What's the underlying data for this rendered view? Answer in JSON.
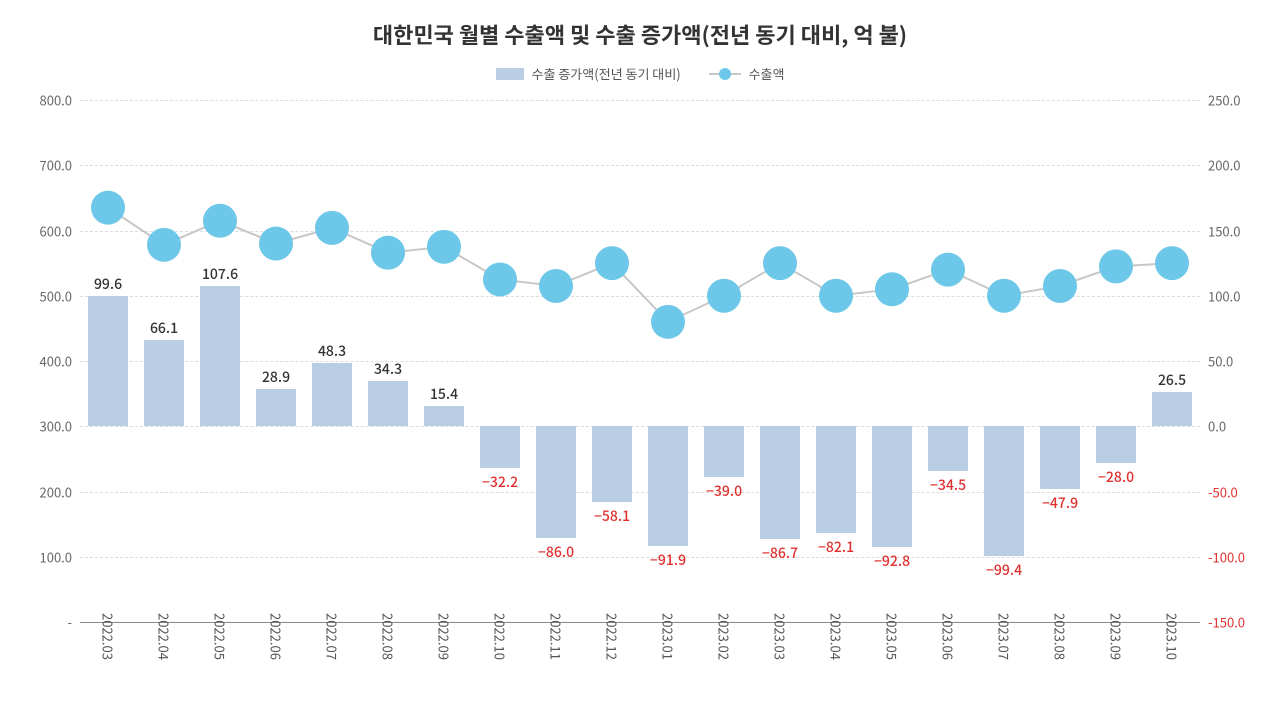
{
  "chart": {
    "title": "대한민국 월별 수출액 및 수출 증가액(전년 동기 대비, 억 불)",
    "title_fontsize": 22,
    "legend": {
      "bar_label": "수출 증가액(전년 동기 대비)",
      "line_label": "수출액",
      "bar_color": "#b9cee4",
      "line_color": "#6cc7e8",
      "line_stroke": "#c7c7c7"
    },
    "categories": [
      "2022.03",
      "2022.04",
      "2022.05",
      "2022.06",
      "2022.07",
      "2022.08",
      "2022.09",
      "2022.10",
      "2022.11",
      "2022.12",
      "2023.01",
      "2023.02",
      "2023.03",
      "2023.04",
      "2023.05",
      "2023.06",
      "2023.07",
      "2023.08",
      "2023.09",
      "2023.10"
    ],
    "bars": {
      "values": [
        99.6,
        66.1,
        107.6,
        28.9,
        48.3,
        34.3,
        15.4,
        -32.2,
        -86.0,
        -58.1,
        -91.9,
        -39.0,
        -86.7,
        -82.1,
        -92.8,
        -34.5,
        -99.4,
        -47.9,
        -28.0,
        26.5
      ],
      "color": "#b9cee4",
      "label_color_pos": "#333333",
      "label_color_neg": "#e03030",
      "label_fontsize": 14
    },
    "line": {
      "values": [
        635,
        578,
        615,
        580,
        604,
        566,
        575,
        525,
        515,
        550,
        460,
        500,
        550,
        500,
        510,
        540,
        500,
        515,
        545,
        550
      ],
      "marker_color": "#6cc7e8",
      "marker_radius": 17,
      "stroke_color": "#c7c7c7",
      "stroke_width": 2
    },
    "left_axis": {
      "min": 0,
      "max": 800,
      "step": 100,
      "labels": [
        "-",
        "100.0",
        "200.0",
        "300.0",
        "400.0",
        "500.0",
        "600.0",
        "700.0",
        "800.0"
      ],
      "label_color": "#666666"
    },
    "right_axis": {
      "min": -150,
      "max": 250,
      "step": 50,
      "labels": [
        "-150.0",
        "-100.0",
        "-50.0",
        "0.0",
        "50.0",
        "100.0",
        "150.0",
        "200.0",
        "250.0"
      ],
      "label_color_pos": "#666666",
      "label_color_neg": "#e03030"
    },
    "grid_color": "#dcdcdc",
    "background": "#ffffff"
  }
}
